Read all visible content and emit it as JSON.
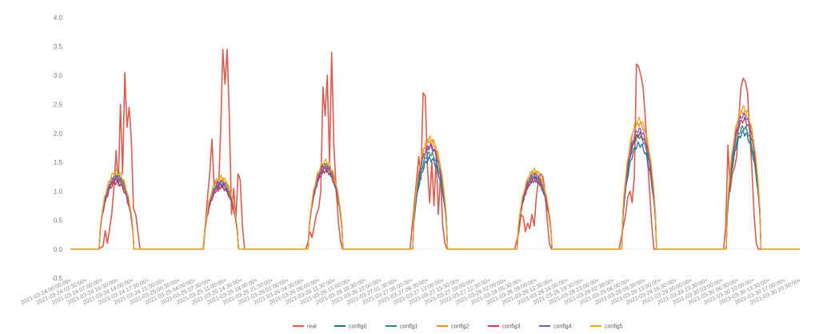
{
  "chart_data": {
    "type": "line",
    "title": "",
    "xlabel": "",
    "ylabel": "",
    "ylim": [
      -0.5,
      4.0
    ],
    "yticks": [
      "4.0",
      "3.5",
      "3.0",
      "2.5",
      "2.0",
      "1.5",
      "1.0",
      "0.5",
      "0.0",
      "-0.5"
    ],
    "grid": "zero-line only",
    "legend_position": "bottom-center",
    "x_tick_labels": [
      "2021-03-24 00:00:00+",
      "2021-03-24 03:30:00+",
      "2021-03-24 07:00:00+",
      "2021-03-24 10:30:00+",
      "2021-03-24 14:00:00+",
      "2021-03-24 17:30:00+",
      "2021-03-24 21:00:00+",
      "2021-03-25 00:30:00+",
      "2021-03-25 04:00:00+",
      "2021-03-25 07:30:00+",
      "2021-03-25 11:00:00+",
      "2021-03-25 14:30:00+",
      "2021-03-25 18:00:00+",
      "2021-03-25 21:30:00+",
      "2021-03-26 01:00:00+",
      "2021-03-26 04:30:00+",
      "2021-03-26 08:00:00+",
      "2021-03-26 11:30:00+",
      "2021-03-26 15:00:00+",
      "2021-03-26 18:30:00+",
      "2021-03-26 22:00:00+",
      "2021-03-27 01:30:00+",
      "2021-03-27 05:00:00+",
      "2021-03-27 08:30:00+",
      "2021-03-27 12:00:00+",
      "2021-03-27 15:30:00+",
      "2021-03-27 19:00:00+",
      "2021-03-27 22:30:00+",
      "2021-03-28 02:00:00+",
      "2021-03-28 05:30:00+",
      "2021-03-28 09:00:00+",
      "2021-03-28 12:30:00+",
      "2021-03-28 16:00:00+",
      "2021-03-28 19:30:00+",
      "2021-03-28 23:00:00+",
      "2021-03-29 02:30:00+",
      "2021-03-29 06:00:00+",
      "2021-03-29 09:30:00+",
      "2021-03-29 13:00:00+",
      "2021-03-29 16:30:00+",
      "2021-03-29 20:00:00+",
      "2021-03-29 23:30:00+",
      "2021-03-30 03:00:00+",
      "2021-03-30 06:30:00+",
      "2021-03-30 10:00:00+",
      "2021-03-30 13:30:00+",
      "2021-03-30 17:00:00+",
      "2021-03-30 20:30:00+"
    ],
    "x_start": "2021-03-24 00:00:00",
    "x_end": "2021-03-30 23:30:00",
    "series": [
      {
        "name": "real",
        "color": "#e05a4e",
        "points": [
          [
            "2021-03-24 00:00:00",
            0
          ],
          [
            "2021-03-24 06:30:00",
            0
          ],
          [
            "2021-03-24 07:30:00",
            0.05
          ],
          [
            "2021-03-24 08:00:00",
            0.32
          ],
          [
            "2021-03-24 08:30:00",
            0.1
          ],
          [
            "2021-03-24 09:30:00",
            0.6
          ],
          [
            "2021-03-24 10:00:00",
            1.05
          ],
          [
            "2021-03-24 10:30:00",
            1.7
          ],
          [
            "2021-03-24 11:00:00",
            1.1
          ],
          [
            "2021-03-24 11:30:00",
            2.5
          ],
          [
            "2021-03-24 12:00:00",
            1.3
          ],
          [
            "2021-03-24 12:30:00",
            3.05
          ],
          [
            "2021-03-24 13:00:00",
            2.1
          ],
          [
            "2021-03-24 13:30:00",
            2.45
          ],
          [
            "2021-03-24 14:00:00",
            1.9
          ],
          [
            "2021-03-24 14:30:00",
            0.7
          ],
          [
            "2021-03-24 15:00:00",
            0.6
          ],
          [
            "2021-03-24 15:30:00",
            0.3
          ],
          [
            "2021-03-24 16:00:00",
            0
          ],
          [
            "2021-03-25 06:30:00",
            0
          ],
          [
            "2021-03-25 07:30:00",
            0.9
          ],
          [
            "2021-03-25 08:00:00",
            1.3
          ],
          [
            "2021-03-25 08:30:00",
            1.9
          ],
          [
            "2021-03-25 09:00:00",
            1.1
          ],
          [
            "2021-03-25 09:30:00",
            1.2
          ],
          [
            "2021-03-25 10:00:00",
            1.0
          ],
          [
            "2021-03-25 10:30:00",
            2.0
          ],
          [
            "2021-03-25 11:00:00",
            3.45
          ],
          [
            "2021-03-25 11:30:00",
            2.85
          ],
          [
            "2021-03-25 12:00:00",
            3.45
          ],
          [
            "2021-03-25 12:30:00",
            2.3
          ],
          [
            "2021-03-25 13:00:00",
            0.6
          ],
          [
            "2021-03-25 13:30:00",
            1.05
          ],
          [
            "2021-03-25 14:00:00",
            0.5
          ],
          [
            "2021-03-25 14:30:00",
            1.3
          ],
          [
            "2021-03-25 15:00:00",
            1.2
          ],
          [
            "2021-03-25 15:30:00",
            0.4
          ],
          [
            "2021-03-25 16:00:00",
            0
          ],
          [
            "2021-03-26 06:00:00",
            0
          ],
          [
            "2021-03-26 06:30:00",
            0.1
          ],
          [
            "2021-03-26 07:00:00",
            0.3
          ],
          [
            "2021-03-26 07:30:00",
            0.2
          ],
          [
            "2021-03-26 08:00:00",
            0.4
          ],
          [
            "2021-03-26 08:30:00",
            0.6
          ],
          [
            "2021-03-26 09:00:00",
            0.7
          ],
          [
            "2021-03-26 09:30:00",
            1.0
          ],
          [
            "2021-03-26 10:00:00",
            2.8
          ],
          [
            "2021-03-26 10:30:00",
            2.3
          ],
          [
            "2021-03-26 11:00:00",
            3.0
          ],
          [
            "2021-03-26 11:30:00",
            1.5
          ],
          [
            "2021-03-26 12:00:00",
            3.4
          ],
          [
            "2021-03-26 12:30:00",
            1.8
          ],
          [
            "2021-03-26 13:00:00",
            1.1
          ],
          [
            "2021-03-26 13:30:00",
            0.5
          ],
          [
            "2021-03-26 14:00:00",
            0.15
          ],
          [
            "2021-03-26 14:30:00",
            0
          ],
          [
            "2021-03-27 06:00:00",
            0
          ],
          [
            "2021-03-27 07:00:00",
            0.8
          ],
          [
            "2021-03-27 07:30:00",
            1.2
          ],
          [
            "2021-03-27 08:00:00",
            1.6
          ],
          [
            "2021-03-27 08:30:00",
            1.2
          ],
          [
            "2021-03-27 09:00:00",
            2.7
          ],
          [
            "2021-03-27 09:30:00",
            2.65
          ],
          [
            "2021-03-27 10:00:00",
            1.4
          ],
          [
            "2021-03-27 10:30:00",
            0.8
          ],
          [
            "2021-03-27 11:00:00",
            1.5
          ],
          [
            "2021-03-27 11:30:00",
            0.75
          ],
          [
            "2021-03-27 12:00:00",
            1.6
          ],
          [
            "2021-03-27 12:30:00",
            0.6
          ],
          [
            "2021-03-27 13:00:00",
            1.3
          ],
          [
            "2021-03-27 13:30:00",
            0.4
          ],
          [
            "2021-03-27 14:00:00",
            0.1
          ],
          [
            "2021-03-27 14:30:00",
            0
          ],
          [
            "2021-03-28 06:00:00",
            0
          ],
          [
            "2021-03-28 07:00:00",
            0.3
          ],
          [
            "2021-03-28 07:30:00",
            0.6
          ],
          [
            "2021-03-28 08:00:00",
            0.55
          ],
          [
            "2021-03-28 08:30:00",
            0.3
          ],
          [
            "2021-03-28 09:00:00",
            0.45
          ],
          [
            "2021-03-28 09:30:00",
            0.35
          ],
          [
            "2021-03-28 10:00:00",
            0.6
          ],
          [
            "2021-03-28 10:30:00",
            0.4
          ],
          [
            "2021-03-28 11:00:00",
            0.9
          ],
          [
            "2021-03-28 11:30:00",
            1.2
          ],
          [
            "2021-03-28 12:00:00",
            1.3
          ],
          [
            "2021-03-28 12:30:00",
            1.25
          ],
          [
            "2021-03-28 13:00:00",
            1.0
          ],
          [
            "2021-03-28 13:30:00",
            0.5
          ],
          [
            "2021-03-28 14:00:00",
            0.1
          ],
          [
            "2021-03-28 14:30:00",
            0
          ],
          [
            "2021-03-29 06:00:00",
            0
          ],
          [
            "2021-03-29 07:00:00",
            0.4
          ],
          [
            "2021-03-29 07:30:00",
            0.6
          ],
          [
            "2021-03-29 08:00:00",
            0.9
          ],
          [
            "2021-03-29 08:30:00",
            1.0
          ],
          [
            "2021-03-29 09:00:00",
            0.8
          ],
          [
            "2021-03-29 09:30:00",
            1.25
          ],
          [
            "2021-03-29 10:00:00",
            3.2
          ],
          [
            "2021-03-29 10:30:00",
            3.15
          ],
          [
            "2021-03-29 11:00:00",
            3.0
          ],
          [
            "2021-03-29 11:30:00",
            2.8
          ],
          [
            "2021-03-29 12:00:00",
            2.3
          ],
          [
            "2021-03-29 12:30:00",
            1.6
          ],
          [
            "2021-03-29 13:00:00",
            1.0
          ],
          [
            "2021-03-29 13:30:00",
            0.4
          ],
          [
            "2021-03-29 14:00:00",
            0
          ],
          [
            "2021-03-30 06:00:00",
            0
          ],
          [
            "2021-03-30 06:30:00",
            0.4
          ],
          [
            "2021-03-30 07:00:00",
            1.8
          ],
          [
            "2021-03-30 07:30:00",
            1.0
          ],
          [
            "2021-03-30 08:00:00",
            1.3
          ],
          [
            "2021-03-30 08:30:00",
            1.4
          ],
          [
            "2021-03-30 09:00:00",
            1.6
          ],
          [
            "2021-03-30 09:30:00",
            2.3
          ],
          [
            "2021-03-30 10:00:00",
            2.8
          ],
          [
            "2021-03-30 10:30:00",
            2.95
          ],
          [
            "2021-03-30 11:00:00",
            2.9
          ],
          [
            "2021-03-30 11:30:00",
            2.7
          ],
          [
            "2021-03-30 12:00:00",
            2.0
          ],
          [
            "2021-03-30 12:30:00",
            1.4
          ],
          [
            "2021-03-30 13:00:00",
            0.6
          ],
          [
            "2021-03-30 13:30:00",
            0.1
          ],
          [
            "2021-03-30 14:00:00",
            0
          ],
          [
            "2021-03-30 23:30:00",
            0
          ]
        ]
      },
      {
        "name": "config0",
        "color": "#1f6fa8",
        "peaks": [
          1.25,
          1.15,
          1.42,
          1.6,
          1.25,
          1.85,
          2.05
        ],
        "offset": -0.04
      },
      {
        "name": "config1",
        "color": "#238f6f",
        "peaks": [
          1.28,
          1.12,
          1.45,
          1.65,
          1.28,
          1.95,
          2.1
        ],
        "offset": 0.0
      },
      {
        "name": "config2",
        "color": "#ef8a2a",
        "peaks": [
          1.2,
          1.18,
          1.4,
          1.85,
          1.3,
          2.15,
          2.35
        ],
        "offset": 0.02
      },
      {
        "name": "config3",
        "color": "#c7385e",
        "peaks": [
          1.18,
          1.1,
          1.38,
          1.8,
          1.22,
          2.0,
          2.25
        ],
        "offset": -0.02
      },
      {
        "name": "config4",
        "color": "#7b58c4",
        "peaks": [
          1.22,
          1.14,
          1.43,
          1.75,
          1.27,
          2.05,
          2.3
        ],
        "offset": 0.01
      },
      {
        "name": "config5",
        "color": "#eda91e",
        "peaks": [
          1.3,
          1.2,
          1.48,
          1.88,
          1.32,
          2.2,
          2.4
        ],
        "offset": 0.03
      }
    ]
  }
}
